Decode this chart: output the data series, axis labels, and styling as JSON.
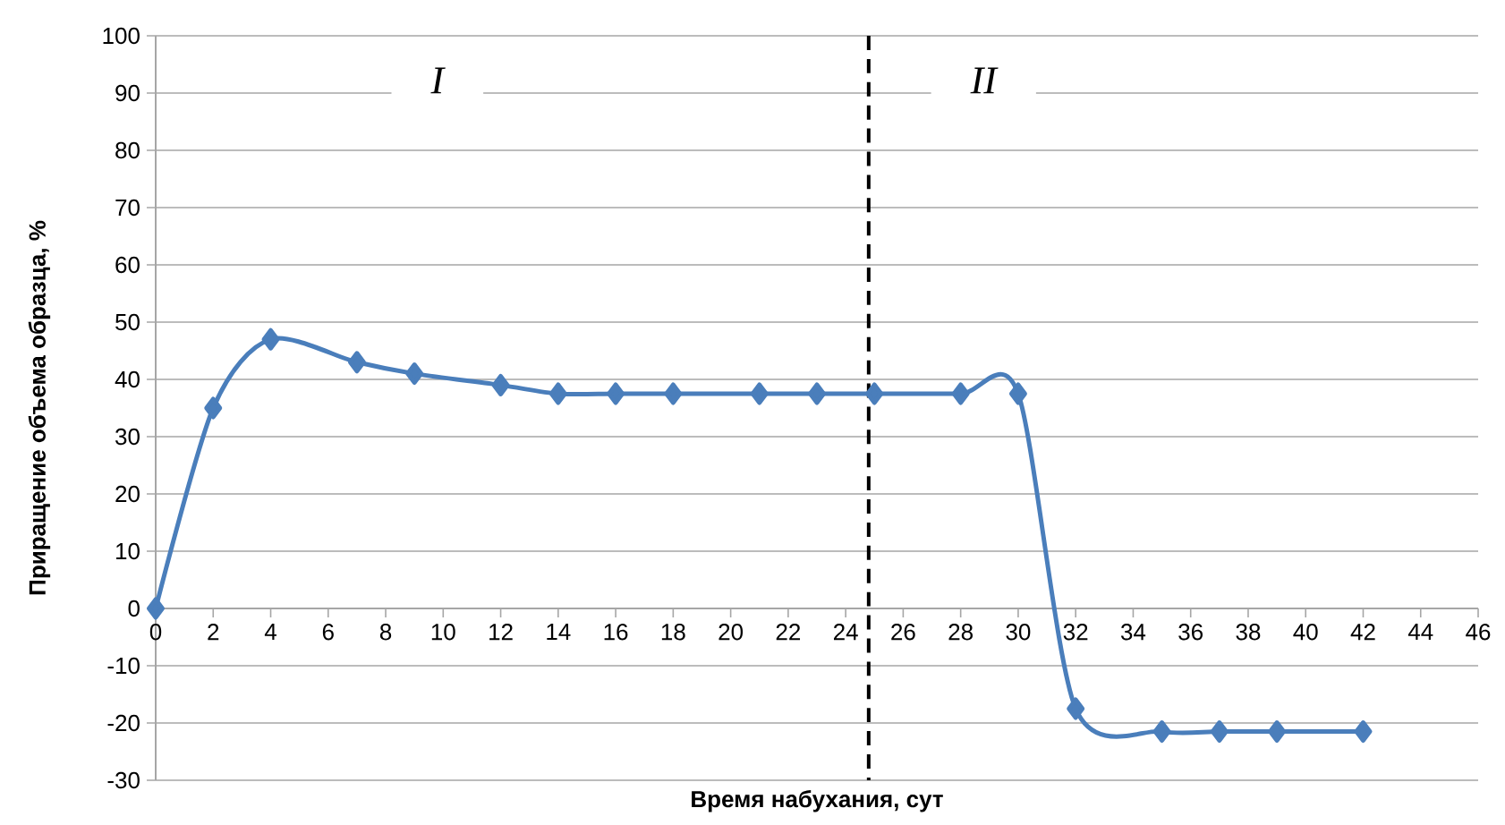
{
  "chart_data": {
    "type": "line",
    "xlabel": "Время набухания, сут",
    "ylabel": "Приращение объема образца, %",
    "x": [
      0,
      2,
      4,
      7,
      9,
      12,
      14,
      16,
      18,
      21,
      23,
      25,
      28,
      30,
      32,
      35,
      37,
      39,
      42
    ],
    "series": [
      {
        "color": "#4a7ebb",
        "values": [
          0,
          35,
          47,
          43,
          41,
          39,
          37.5,
          37.5,
          37.5,
          37.5,
          37.5,
          37.5,
          37.5,
          37.5,
          -17.5,
          -21.5,
          -21.5,
          -21.5,
          -21.5
        ]
      }
    ],
    "xlim": [
      0,
      46
    ],
    "xticks": [
      0,
      2,
      4,
      6,
      8,
      10,
      12,
      14,
      16,
      18,
      20,
      22,
      24,
      26,
      28,
      30,
      32,
      34,
      36,
      38,
      40,
      42,
      44,
      46
    ],
    "ylim": [
      -30,
      100
    ],
    "yticks": [
      -30,
      -20,
      -10,
      0,
      10,
      20,
      30,
      40,
      50,
      60,
      70,
      80,
      90,
      100
    ],
    "grid": "y",
    "marker": "diamond",
    "line_style": "solid",
    "ref_lines": [
      {
        "axis": "x",
        "value": 24.8,
        "color": "#000000",
        "line_style": "dashed"
      }
    ],
    "annotations": [
      "I",
      "II"
    ]
  }
}
